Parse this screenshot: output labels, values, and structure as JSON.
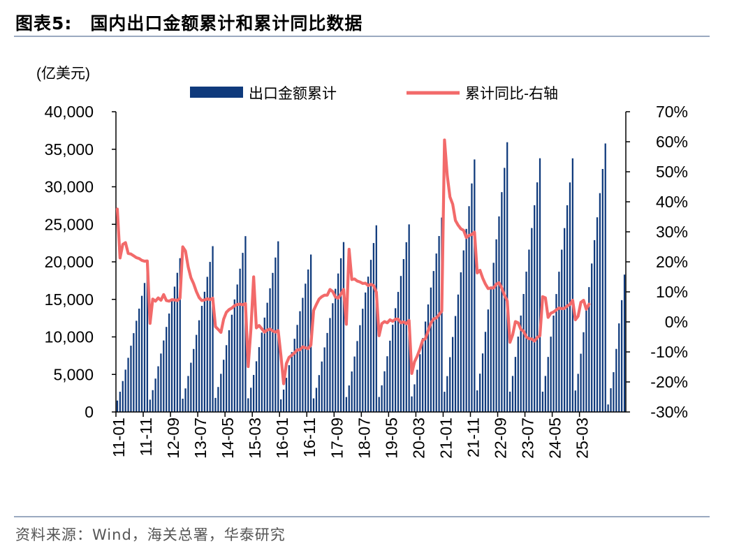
{
  "title": {
    "prefix": "图表5:",
    "text": "国内出口金额累计和累计同比数据"
  },
  "source": "资料来源：Wind，海关总署，华泰研究",
  "chart_data": {
    "type": "bar+line",
    "unit_label": "(亿美元)",
    "legend": [
      {
        "name": "出口金额累计",
        "type": "bar",
        "color": "#0f3a7c"
      },
      {
        "name": "累计同比-右轴",
        "type": "line",
        "color": "#f26a6a"
      }
    ],
    "y_left": {
      "min": 0,
      "max": 40000,
      "ticks": [
        "0",
        "5,000",
        "10,000",
        "15,000",
        "20,000",
        "25,000",
        "30,000",
        "35,000",
        "40,000"
      ]
    },
    "y_right": {
      "min": -30,
      "max": 70,
      "ticks": [
        "-30%",
        "-20%",
        "-10%",
        "0%",
        "10%",
        "20%",
        "30%",
        "40%",
        "50%",
        "60%",
        "70%"
      ]
    },
    "x_tick_labels": [
      "11-01",
      "11-11",
      "12-09",
      "13-07",
      "14-05",
      "15-03",
      "16-01",
      "16-11",
      "17-09",
      "18-07",
      "19-05",
      "20-03",
      "21-01",
      "21-11",
      "22-09",
      "23-07",
      "24-05",
      "25-03"
    ],
    "series": [
      {
        "name": "出口金额累计",
        "annual_totals": [
          18986,
          20487,
          22090,
          23423,
          22735,
          20974,
          22633,
          24867,
          24990,
          25900,
          33640,
          35936,
          33800,
          33790,
          35770
        ],
        "last_year_partial": [
          1000,
          3160,
          5300,
          8400,
          11800,
          14900,
          18300
        ]
      },
      {
        "name": "累计同比-右轴",
        "start": "11-01",
        "values": [
          37.6,
          21.3,
          25.8,
          26.4,
          22.8,
          22.6,
          22.0,
          21.4,
          21.1,
          20.5,
          20.2,
          20.3,
          -0.5,
          7.6,
          6.9,
          8.0,
          7.2,
          9.1,
          7.1,
          6.9,
          7.4,
          7.3,
          7.1,
          7.9,
          25.0,
          23.6,
          18.3,
          14.7,
          12.7,
          10.1,
          8.1,
          7.1,
          7.3,
          7.7,
          7.4,
          7.9,
          -1.6,
          -2.5,
          -3.5,
          0.9,
          3.2,
          4.1,
          4.6,
          5.4,
          5.8,
          5.9,
          5.7,
          6.1,
          -14.9,
          -2.4,
          15.0,
          -2.0,
          -1.2,
          -2.3,
          -3.4,
          -2.7,
          -2.4,
          -3.0,
          -3.4,
          -2.9,
          -11.2,
          -20.6,
          -13.9,
          -11.8,
          -11.1,
          -10.3,
          -9.3,
          -9.3,
          -8.3,
          -8.6,
          -8.9,
          -7.7,
          3.8,
          5.8,
          7.6,
          8.4,
          8.9,
          8.9,
          10.8,
          10.1,
          8.3,
          7.9,
          9.2,
          10.8,
          -0.8,
          24.2,
          14.1,
          14.3,
          13.6,
          13.3,
          12.8,
          12.9,
          12.1,
          12.5,
          12.1,
          9.9,
          -4.6,
          -0.6,
          0.1,
          -0.3,
          0.7,
          0.2,
          0.9,
          0.9,
          -0.3,
          0.0,
          -0.6,
          0.5,
          -17.2,
          -13.3,
          -11.4,
          -9.0,
          -6.1,
          -5.6,
          -3.0,
          -0.4,
          1.0,
          1.3,
          2.4,
          3.6,
          60.6,
          48.8,
          41.6,
          39.2,
          33.8,
          32.2,
          31.0,
          30.5,
          28.1,
          28.8,
          29.1,
          29.9,
          16.3,
          17.2,
          14.6,
          12.6,
          11.1,
          11.3,
          11.3,
          12.6,
          13.0,
          11.3,
          8.9,
          7.0,
          -6.8,
          -4.3,
          0.1,
          -0.3,
          -2.5,
          -3.1,
          -5.0,
          -5.6,
          -5.7,
          -6.4,
          -5.2,
          -4.6,
          8.4,
          8.0,
          1.5,
          2.9,
          3.3,
          4.0,
          4.6,
          4.4,
          4.5,
          5.3,
          5.8,
          7.2,
          0.7,
          1.9,
          6.5,
          7.2,
          4.2,
          5.9
        ]
      }
    ]
  }
}
